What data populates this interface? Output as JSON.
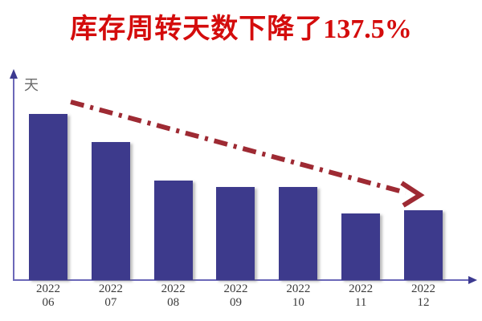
{
  "title": {
    "text_cn": "库存周转天数下降了",
    "value": "137.5%",
    "full": "库存周转天数下降了137.5%",
    "color": "#d40c0c"
  },
  "chart_data": {
    "type": "bar",
    "title": "库存周转天数下降了137.5%",
    "categories": [
      "2022-06",
      "2022-07",
      "2022-08",
      "2022-09",
      "2022-10",
      "2022-11",
      "2022-12"
    ],
    "tick_years": [
      "2022",
      "2022",
      "2022",
      "2022",
      "2022",
      "2022",
      "2022"
    ],
    "tick_months": [
      "06",
      "07",
      "08",
      "09",
      "10",
      "11",
      "12"
    ],
    "values": [
      95,
      79,
      57,
      53,
      53,
      38,
      40
    ],
    "unit": "天",
    "ylabel": "天",
    "xlabel": "",
    "ylim": [
      0,
      120
    ],
    "grid": false,
    "legend": "none",
    "bar_color": "#3d3a8c",
    "axis_color": "#6b68b8",
    "axis_arrow_color": "#3c3a90",
    "tick_label_color": "#3a3a3a",
    "trend_arrow": {
      "direction": "down",
      "style": "dash-dot",
      "color": "#9e2a33",
      "note": "decline trend arrow from first bar to last bar"
    }
  }
}
